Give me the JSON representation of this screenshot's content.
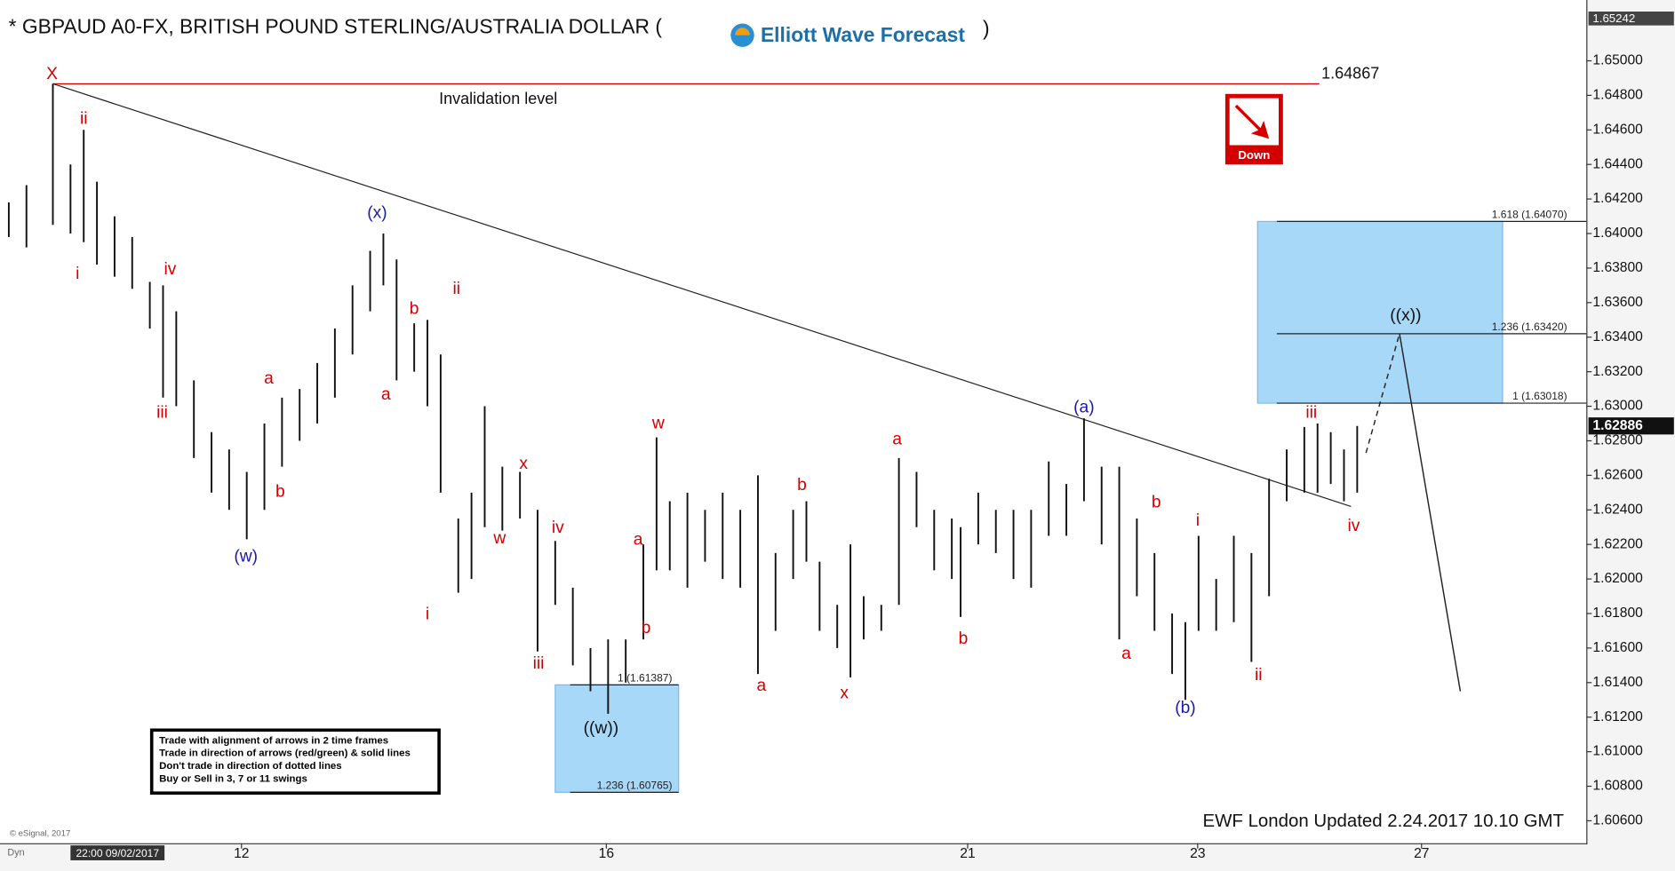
{
  "chart_data": {
    "type": "range",
    "title": "* GBPAUD A0-FX, BRITISH POUND STERLING/AUSTRALIA DOLLAR (",
    "title_suffix": ")",
    "color": "#111111",
    "xlim": [
      0,
      180
    ],
    "ylim": [
      1.6047,
      1.65352
    ],
    "xticks": [
      {
        "value": 27.4,
        "label": "12"
      },
      {
        "value": 68.8,
        "label": "16"
      },
      {
        "value": 109.8,
        "label": "21"
      },
      {
        "value": 135.9,
        "label": "23"
      },
      {
        "value": 161.3,
        "label": "27"
      }
    ],
    "yticks": [
      {
        "value": 1.606,
        "label": "1.60600"
      },
      {
        "value": 1.608,
        "label": "1.60800"
      },
      {
        "value": 1.61,
        "label": "1.61000"
      },
      {
        "value": 1.612,
        "label": "1.61200"
      },
      {
        "value": 1.614,
        "label": "1.61400"
      },
      {
        "value": 1.616,
        "label": "1.61600"
      },
      {
        "value": 1.618,
        "label": "1.61800"
      },
      {
        "value": 1.62,
        "label": "1.62000"
      },
      {
        "value": 1.622,
        "label": "1.62200"
      },
      {
        "value": 1.624,
        "label": "1.62400"
      },
      {
        "value": 1.626,
        "label": "1.62600"
      },
      {
        "value": 1.628,
        "label": "1.62800"
      },
      {
        "value": 1.63,
        "label": "1.63000"
      },
      {
        "value": 1.632,
        "label": "1.63200"
      },
      {
        "value": 1.634,
        "label": "1.63400"
      },
      {
        "value": 1.636,
        "label": "1.63600"
      },
      {
        "value": 1.638,
        "label": "1.63800"
      },
      {
        "value": 1.64,
        "label": "1.64000"
      },
      {
        "value": 1.642,
        "label": "1.64200"
      },
      {
        "value": 1.644,
        "label": "1.64400"
      },
      {
        "value": 1.646,
        "label": "1.64600"
      },
      {
        "value": 1.648,
        "label": "1.64800"
      },
      {
        "value": 1.65,
        "label": "1.65000"
      }
    ],
    "x": [
      1,
      3,
      6,
      8,
      9.5,
      11,
      13,
      15,
      17,
      18.5,
      20,
      22,
      24,
      26,
      28,
      30,
      32,
      34,
      36,
      38,
      40,
      42,
      43.5,
      45,
      47,
      48.5,
      50,
      52,
      53.5,
      55,
      57,
      59,
      61,
      63,
      65,
      67,
      69,
      71,
      73,
      74.5,
      76,
      78,
      80,
      82,
      84,
      86,
      88,
      90,
      91.5,
      93,
      95,
      96.5,
      98,
      100,
      102,
      104,
      106,
      108,
      109,
      111,
      113,
      115,
      117,
      119,
      121,
      123,
      125,
      127,
      129,
      131,
      133,
      134.5,
      136,
      138,
      140,
      142,
      144,
      146,
      148,
      149.5,
      151,
      152.5,
      154
    ],
    "high": [
      1.6418,
      1.6428,
      1.64867,
      1.644,
      1.646,
      1.643,
      1.641,
      1.6398,
      1.6372,
      1.637,
      1.6355,
      1.6315,
      1.6285,
      1.6275,
      1.6262,
      1.629,
      1.6305,
      1.631,
      1.6325,
      1.6345,
      1.637,
      1.639,
      1.64,
      1.6385,
      1.6348,
      1.635,
      1.633,
      1.6235,
      1.625,
      1.63,
      1.6265,
      1.6262,
      1.624,
      1.6222,
      1.6195,
      1.616,
      1.6165,
      1.6165,
      1.622,
      1.6282,
      1.6245,
      1.625,
      1.624,
      1.625,
      1.624,
      1.626,
      1.6215,
      1.624,
      1.6245,
      1.621,
      1.6185,
      1.622,
      1.619,
      1.6185,
      1.627,
      1.6262,
      1.624,
      1.6235,
      1.623,
      1.625,
      1.624,
      1.624,
      1.624,
      1.6268,
      1.6255,
      1.6293,
      1.6265,
      1.6265,
      1.6235,
      1.6215,
      1.618,
      1.6175,
      1.6225,
      1.62,
      1.6225,
      1.6215,
      1.6258,
      1.6275,
      1.6288,
      1.629,
      1.6285,
      1.6275,
      1.62886
    ],
    "low": [
      1.6398,
      1.6392,
      1.6405,
      1.64,
      1.6395,
      1.6382,
      1.6375,
      1.6368,
      1.6345,
      1.6305,
      1.63,
      1.627,
      1.625,
      1.624,
      1.6223,
      1.624,
      1.6265,
      1.628,
      1.629,
      1.6305,
      1.633,
      1.6355,
      1.637,
      1.6315,
      1.632,
      1.63,
      1.625,
      1.6192,
      1.62,
      1.623,
      1.6228,
      1.6235,
      1.6158,
      1.6185,
      1.615,
      1.6135,
      1.6122,
      1.614,
      1.6165,
      1.6205,
      1.6205,
      1.6195,
      1.621,
      1.62,
      1.6195,
      1.6145,
      1.617,
      1.62,
      1.621,
      1.617,
      1.616,
      1.6143,
      1.6165,
      1.617,
      1.6185,
      1.623,
      1.6205,
      1.62,
      1.6178,
      1.622,
      1.6215,
      1.62,
      1.6195,
      1.6225,
      1.6225,
      1.6245,
      1.622,
      1.6165,
      1.619,
      1.617,
      1.6145,
      1.613,
      1.617,
      1.617,
      1.6175,
      1.6152,
      1.619,
      1.6245,
      1.625,
      1.625,
      1.6255,
      1.6245,
      1.625
    ],
    "last_price": 1.62886,
    "top_price": 1.65242,
    "invalidation": {
      "value": 1.64867,
      "x": [
        6,
        149.7
      ],
      "text": "Invalidation level"
    },
    "trendline": {
      "x": [
        6,
        153.3
      ],
      "y": [
        1.64867,
        1.6242
      ]
    },
    "projection": {
      "x": [
        155,
        158.8,
        165.7
      ],
      "y": [
        1.6273,
        1.6342,
        1.6135
      ]
    },
    "zones": [
      {
        "x": [
          142.7,
          170.5
        ],
        "levels": [
          {
            "value": 1.6407,
            "label": "1.618 (1.64070)"
          },
          {
            "value": 1.6342,
            "label": "1.236 (1.63420)"
          },
          {
            "value": 1.63018,
            "label": "1 (1.63018)"
          }
        ]
      },
      {
        "x": [
          63,
          77
        ],
        "levels": [
          {
            "value": 1.61387,
            "label": "1 (1.61387)"
          },
          {
            "value": 1.60765,
            "label": "1.236 (1.60765)"
          }
        ]
      }
    ],
    "annotations": [
      {
        "text": "X",
        "x": 5.9,
        "y": 1.6492,
        "color": "#d40000"
      },
      {
        "text": "ii",
        "x": 9.5,
        "y": 1.6466,
        "color": "#d40000"
      },
      {
        "text": "i",
        "x": 8.8,
        "y": 1.63764,
        "color": "#d40000"
      },
      {
        "text": "iv",
        "x": 19.3,
        "y": 1.63789,
        "color": "#d40000"
      },
      {
        "text": "iii",
        "x": 18.4,
        "y": 1.6296,
        "color": "#d40000"
      },
      {
        "text": "(w)",
        "x": 27.9,
        "y": 1.62126,
        "color": "#1a1aa8"
      },
      {
        "text": "a",
        "x": 30.5,
        "y": 1.63158,
        "color": "#d40000"
      },
      {
        "text": "b",
        "x": 31.8,
        "y": 1.62503,
        "color": "#d40000"
      },
      {
        "text": "(x)",
        "x": 42.8,
        "y": 1.64116,
        "color": "#1a1aa8"
      },
      {
        "text": "a",
        "x": 43.8,
        "y": 1.63065,
        "color": "#d40000"
      },
      {
        "text": "b",
        "x": 47,
        "y": 1.6356,
        "color": "#d40000"
      },
      {
        "text": "i",
        "x": 48.5,
        "y": 1.61792,
        "color": "#d40000"
      },
      {
        "text": "ii",
        "x": 51.8,
        "y": 1.63677,
        "color": "#d40000"
      },
      {
        "text": "x",
        "x": 59.4,
        "y": 1.62664,
        "color": "#d40000"
      },
      {
        "text": "w",
        "x": 56.7,
        "y": 1.62231,
        "color": "#d40000"
      },
      {
        "text": "iv",
        "x": 63.3,
        "y": 1.62293,
        "color": "#d40000"
      },
      {
        "text": "iii",
        "x": 61.1,
        "y": 1.61508,
        "color": "#d40000"
      },
      {
        "text": "((w))",
        "x": 68.2,
        "y": 1.61131,
        "color": "#111111"
      },
      {
        "text": "a",
        "x": 72.4,
        "y": 1.62225,
        "color": "#d40000"
      },
      {
        "text": "b",
        "x": 73.3,
        "y": 1.61712,
        "color": "#d40000"
      },
      {
        "text": "w",
        "x": 74.7,
        "y": 1.62899,
        "color": "#d40000"
      },
      {
        "text": "a",
        "x": 86.4,
        "y": 1.61378,
        "color": "#d40000"
      },
      {
        "text": "b",
        "x": 91,
        "y": 1.6254,
        "color": "#d40000"
      },
      {
        "text": "x",
        "x": 95.8,
        "y": 1.61335,
        "color": "#d40000"
      },
      {
        "text": "a",
        "x": 101.8,
        "y": 1.62806,
        "color": "#d40000"
      },
      {
        "text": "b",
        "x": 109.3,
        "y": 1.6165,
        "color": "#d40000"
      },
      {
        "text": "(a)",
        "x": 123,
        "y": 1.62991,
        "color": "#1a1aa8"
      },
      {
        "text": "a",
        "x": 127.8,
        "y": 1.61564,
        "color": "#d40000"
      },
      {
        "text": "b",
        "x": 131.2,
        "y": 1.62441,
        "color": "#d40000"
      },
      {
        "text": "(b)",
        "x": 134.5,
        "y": 1.61249,
        "color": "#1a1aa8"
      },
      {
        "text": "i",
        "x": 135.9,
        "y": 1.62336,
        "color": "#d40000"
      },
      {
        "text": "ii",
        "x": 142.8,
        "y": 1.6144,
        "color": "#d40000"
      },
      {
        "text": "iii",
        "x": 148.8,
        "y": 1.6296,
        "color": "#d40000"
      },
      {
        "text": "iv",
        "x": 153.6,
        "y": 1.62305,
        "color": "#d40000"
      },
      {
        "text": "((x))",
        "x": 159.5,
        "y": 1.63523,
        "color": "#111111"
      }
    ]
  },
  "logo": "Elliott Wave Forecast",
  "signal": "Down",
  "rules": [
    "Trade with alignment of arrows in 2 time frames",
    "Trade in direction of arrows (red/green) & solid lines",
    "Don't trade in direction of dotted lines",
    "Buy or Sell in 3, 7 or 11 swings"
  ],
  "updated": "EWF London Updated 2.24.2017 10.10 GMT",
  "copyright": "© eSignal, 2017",
  "start_time": "22:00 09/02/2017",
  "scale_mode": "Dyn"
}
